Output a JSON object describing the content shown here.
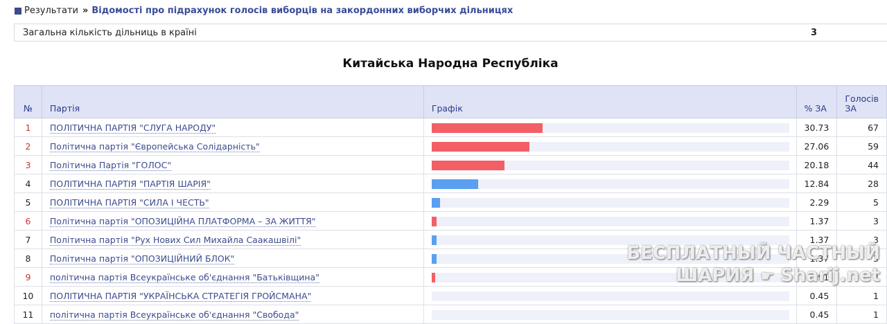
{
  "breadcrumb": {
    "home": "Результати",
    "separator": "»",
    "current": "Відомості про підрахунок голосів виборців на закордонних виборчих дільницях"
  },
  "summary": {
    "label": "Загальна кількість дільниць в країні",
    "value": "3"
  },
  "country_title": "Китайська Народна Республіка",
  "table": {
    "headers": {
      "num": "№",
      "party": "Партія",
      "chart": "Графік",
      "pct": "% ЗА",
      "votes_line1": "Голосів",
      "votes_line2": "ЗА"
    },
    "rows": [
      {
        "num": "1",
        "num_color": "red",
        "party": "ПОЛІТИЧНА ПАРТІЯ \"СЛУГА НАРОДУ\"",
        "pct": "30.73",
        "votes": "67",
        "share": 30.73,
        "bar_color": "#f26066"
      },
      {
        "num": "2",
        "num_color": "red",
        "party": "Політична партія \"Європейська Солідарність\"",
        "pct": "27.06",
        "votes": "59",
        "share": 27.06,
        "bar_color": "#f26066"
      },
      {
        "num": "3",
        "num_color": "red",
        "party": "Політична Партія \"ГОЛОС\"",
        "pct": "20.18",
        "votes": "44",
        "share": 20.18,
        "bar_color": "#f26066"
      },
      {
        "num": "4",
        "num_color": "dark",
        "party": "ПОЛІТИЧНА ПАРТІЯ \"ПАРТІЯ ШАРІЯ\"",
        "pct": "12.84",
        "votes": "28",
        "share": 12.84,
        "bar_color": "#5b9ff0"
      },
      {
        "num": "5",
        "num_color": "dark",
        "party": "ПОЛІТИЧНА ПАРТІЯ \"СИЛА І ЧЕСТЬ\"",
        "pct": "2.29",
        "votes": "5",
        "share": 2.29,
        "bar_color": "#5b9ff0"
      },
      {
        "num": "6",
        "num_color": "red",
        "party": "Політична партія \"ОПОЗИЦІЙНА ПЛАТФОРМА – ЗА ЖИТТЯ\"",
        "pct": "1.37",
        "votes": "3",
        "share": 1.37,
        "bar_color": "#f26066"
      },
      {
        "num": "7",
        "num_color": "dark",
        "party": "Політична партія \"Рух Нових Сил Михайла Саакашвілі\"",
        "pct": "1.37",
        "votes": "3",
        "share": 1.37,
        "bar_color": "#5b9ff0"
      },
      {
        "num": "8",
        "num_color": "dark",
        "party": "Політична партія \"ОПОЗИЦІЙНИЙ БЛОК\"",
        "pct": "1.37",
        "votes": "3",
        "share": 1.37,
        "bar_color": "#5b9ff0"
      },
      {
        "num": "9",
        "num_color": "red",
        "party": "політична партія Всеукраїнське об'єднання \"Батьківщина\"",
        "pct": "0.91",
        "votes": "2",
        "share": 0.91,
        "bar_color": "#f26066"
      },
      {
        "num": "10",
        "num_color": "dark",
        "party": "ПОЛІТИЧНА ПАРТІЯ \"УКРАЇНСЬКА СТРАТЕГІЯ ГРОЙСМАНА\"",
        "pct": "0.45",
        "votes": "1",
        "share": 0.45,
        "bar_color": "#5b9ff0"
      },
      {
        "num": "11",
        "num_color": "dark",
        "party": "політична партія Всеукраїнське об'єднання \"Свобода\"",
        "pct": "0.45",
        "votes": "1",
        "share": 0.45,
        "bar_color": "#5b9ff0"
      }
    ]
  },
  "watermark": {
    "line1": "БЕСПЛАТНЫЙ ЧАСТНЫЙ",
    "line2_left": "ШАРИЯ",
    "line2_right": "Sharij.net"
  }
}
